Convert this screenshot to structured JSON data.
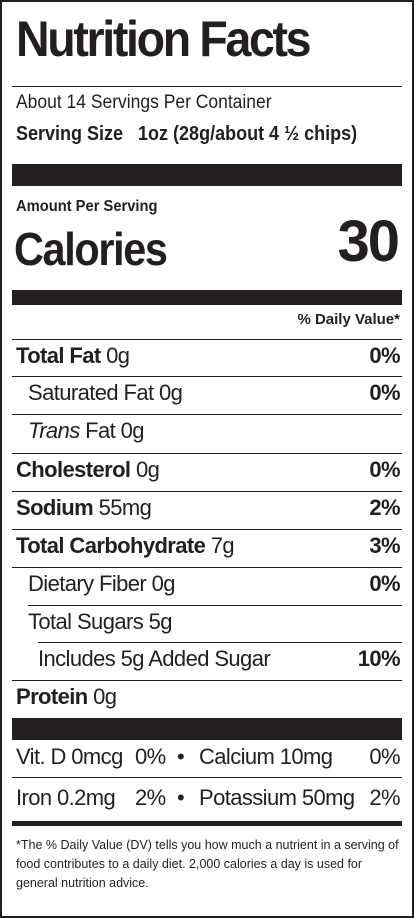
{
  "title": "Nutrition Facts",
  "servings_per_container": "About 14 Servings Per Container",
  "serving_size": {
    "label": "Serving Size",
    "value": "1oz (28g/about 4 ½ chips)"
  },
  "amount_per_serving": "Amount Per Serving",
  "calories": {
    "label": "Calories",
    "value": "30"
  },
  "daily_value_header": "% Daily Value*",
  "nutrients": {
    "total_fat": {
      "label": "Total Fat",
      "amount": "0g",
      "dv": "0%"
    },
    "saturated_fat": {
      "label": "Saturated Fat 0g",
      "dv": "0%"
    },
    "trans_fat": {
      "label_italic": "Trans",
      "label_rest": "Fat 0g"
    },
    "cholesterol": {
      "label": "Cholesterol",
      "amount": "0g",
      "dv": "0%"
    },
    "sodium": {
      "label": "Sodium",
      "amount": "55mg",
      "dv": "2%"
    },
    "total_carbohydrate": {
      "label": "Total Carbohydrate",
      "amount": "7g",
      "dv": "3%"
    },
    "dietary_fiber": {
      "label": "Dietary Fiber 0g",
      "dv": "0%"
    },
    "total_sugars": {
      "label": "Total Sugars 5g"
    },
    "added_sugars": {
      "label": "Includes 5g Added Sugar",
      "dv": "10%"
    },
    "protein": {
      "label": "Protein",
      "amount": "0g"
    }
  },
  "vitamins": {
    "vit_d": "Vit. D 0mcg",
    "vit_d_dv": "0%",
    "calcium": "Calcium 10mg",
    "calcium_dv": "0%",
    "iron": "Iron 0.2mg",
    "iron_dv": "2%",
    "potassium": "Potassium 50mg",
    "potassium_dv": "2%",
    "bullet": "•"
  },
  "footnote": "*The % Daily Value (DV) tells you how much a nutrient in a serving of food contributes to a daily diet. 2,000 calories a day is used for general nutrition advice."
}
